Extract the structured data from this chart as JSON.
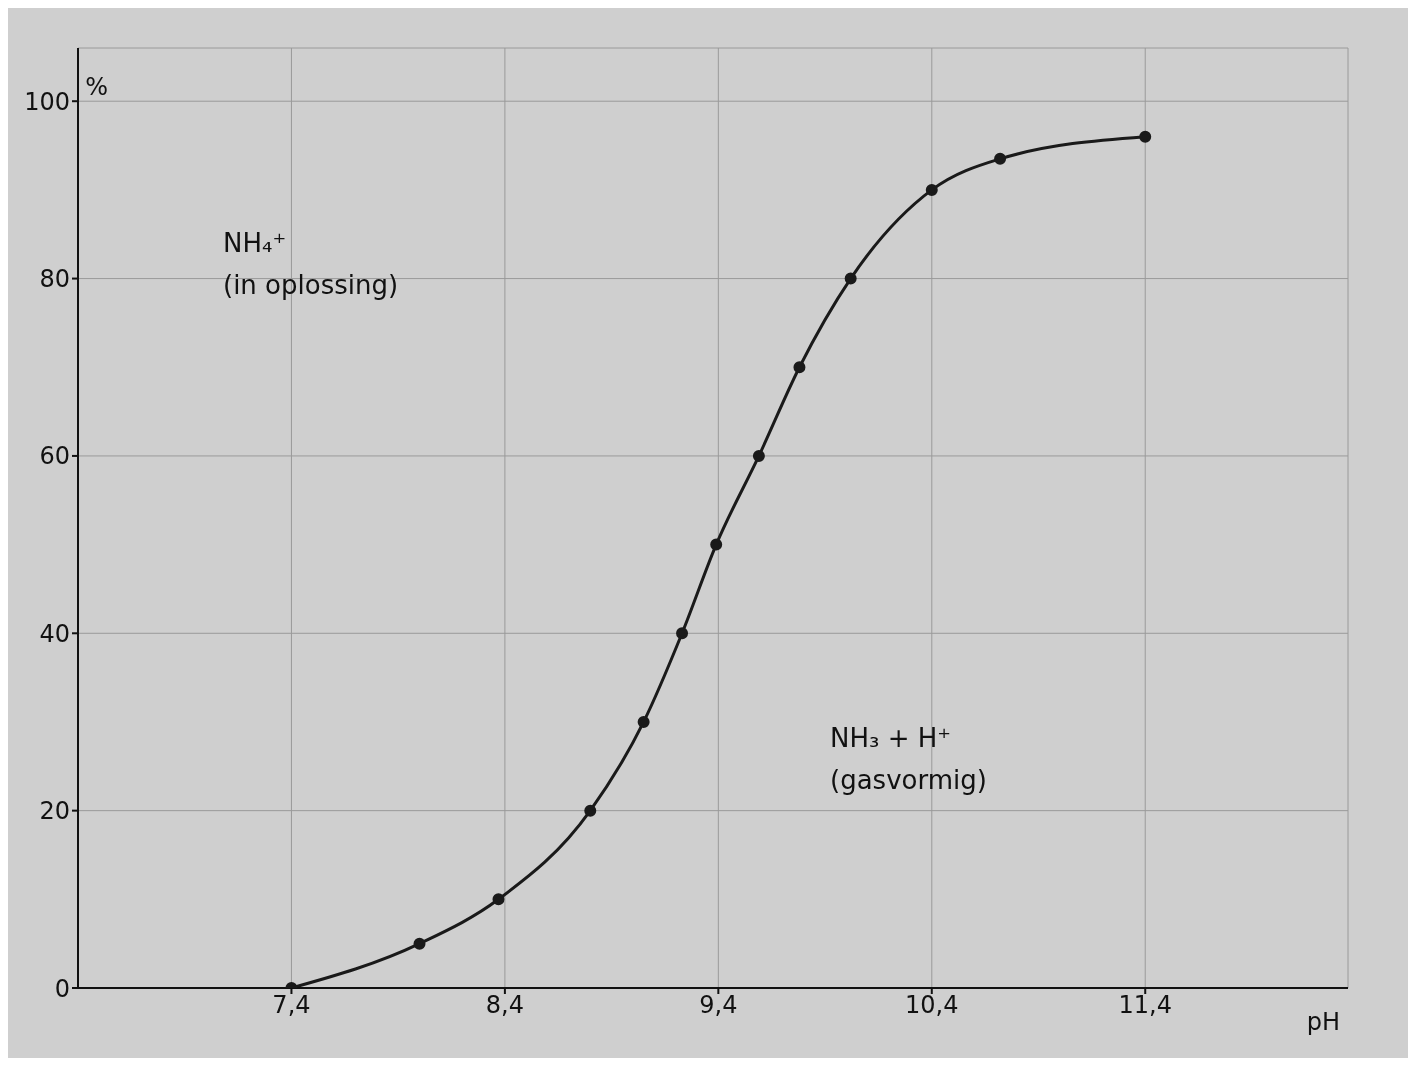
{
  "chart_data": {
    "type": "line",
    "xlabel": "pH",
    "ylabel": "%",
    "annotations": [
      "NH₄⁺\n(in oplossing)",
      "NH₃ + H⁺\n(gasvormig)"
    ],
    "series": [
      {
        "color": "#1a1a1a",
        "x": [
          7.4,
          8.0,
          8.37,
          8.8,
          9.05,
          9.23,
          9.39,
          9.59,
          9.78,
          10.02,
          10.4,
          10.72,
          11.4
        ],
        "values": [
          0,
          5,
          10,
          20,
          30,
          40,
          50,
          60,
          70,
          80,
          90,
          93.5,
          96
        ]
      }
    ],
    "xlim": [
      6.4,
      12.35
    ],
    "xticks": [
      {
        "value": 7.4,
        "label": "7,4"
      },
      {
        "value": 8.4,
        "label": "8,4"
      },
      {
        "value": 9.4,
        "label": "9,4"
      },
      {
        "value": 10.4,
        "label": "10,4"
      },
      {
        "value": 11.4,
        "label": "11,4"
      }
    ],
    "ylim": [
      0,
      106
    ],
    "yticks": [
      0,
      20,
      40,
      60,
      80,
      100
    ],
    "grid": true,
    "marker": "circle",
    "line_style": "solid"
  }
}
